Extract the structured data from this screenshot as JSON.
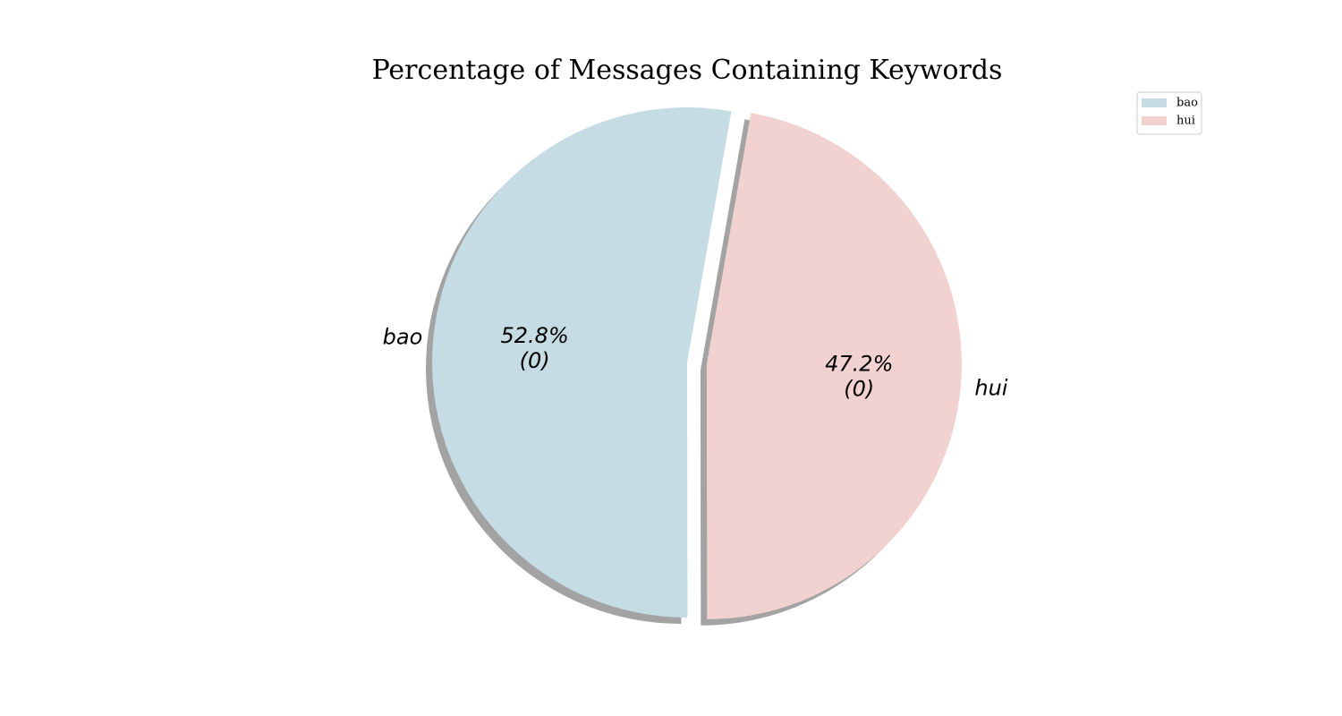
{
  "chart_data": {
    "type": "pie",
    "title": "Percentage of Messages Containing Keywords",
    "categories": [
      "bao",
      "hui"
    ],
    "values": [
      52.8,
      47.2
    ],
    "counts": [
      "(0)",
      "(0)"
    ],
    "percent_labels": [
      "52.8%",
      "47.2%"
    ],
    "colors": [
      "#c5dce4",
      "#f2d2d1"
    ],
    "shadow_color": "#999999",
    "exploded": [
      false,
      true
    ],
    "label_style": "italic",
    "legend": {
      "placement": "top-right",
      "entries": [
        "bao",
        "hui"
      ]
    }
  }
}
